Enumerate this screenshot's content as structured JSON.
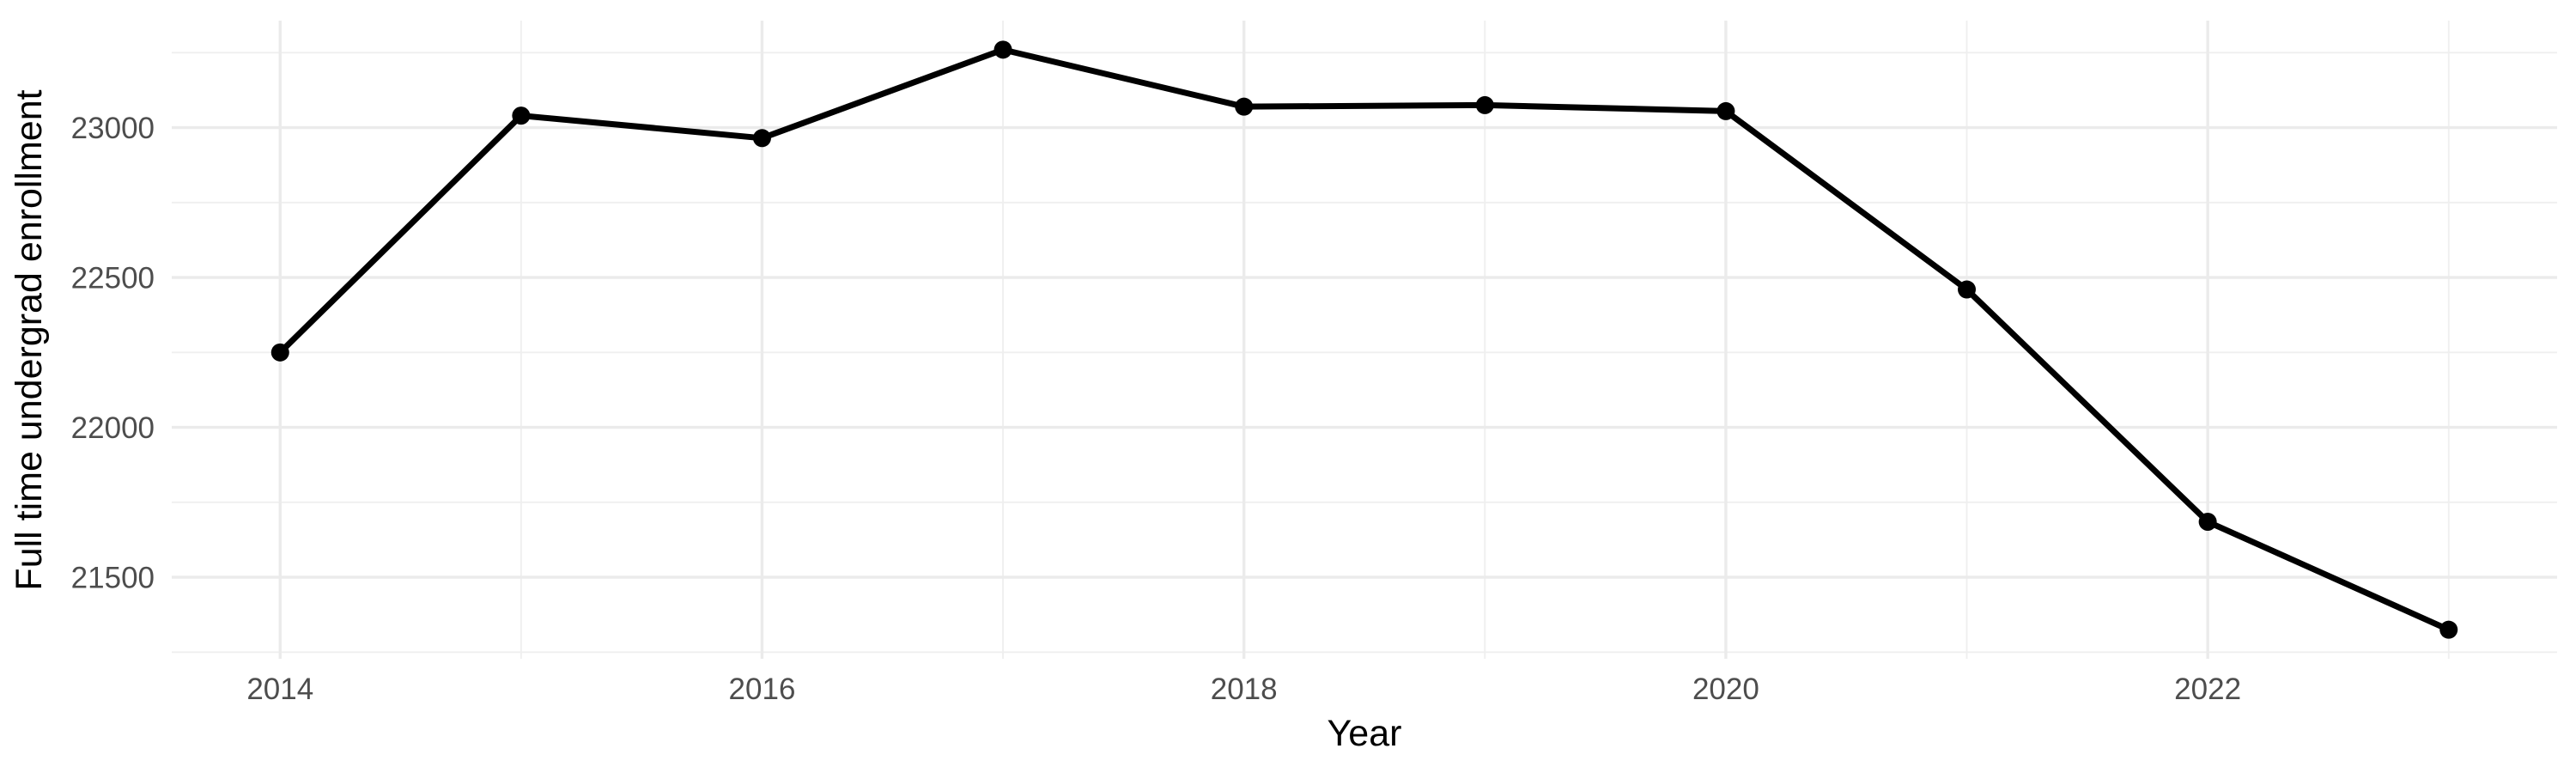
{
  "chart_data": {
    "type": "line",
    "title": "",
    "xlabel": "Year",
    "ylabel": "Full time undergrad enrollment",
    "series": [
      {
        "name": "Full time undergrad enrollment",
        "x": [
          2014,
          2015,
          2016,
          2017,
          2018,
          2019,
          2020,
          2021,
          2022,
          2023
        ],
        "values": [
          22250,
          23040,
          22965,
          23260,
          23070,
          23075,
          23055,
          22460,
          21685,
          21325
        ]
      }
    ],
    "x_major_ticks": [
      2014,
      2016,
      2018,
      2020,
      2022
    ],
    "x_tick_labels": [
      "2014",
      "2016",
      "2018",
      "2020",
      "2022"
    ],
    "x_minor_gridlines": [
      2015,
      2017,
      2019,
      2021,
      2023
    ],
    "y_major_ticks": [
      23000,
      22500,
      22000,
      21500
    ],
    "y_tick_labels": [
      "23000",
      "22500",
      "22000",
      "21500"
    ],
    "y_minor_gridlines": [
      23250,
      22750,
      22250,
      21750,
      21250
    ],
    "xlim": [
      2013.55,
      2023.45
    ],
    "ylim": [
      21228,
      23357
    ],
    "grid": true,
    "legend_position": "none",
    "colors": {
      "background": "#ffffff",
      "grid_major": "#ebebeb",
      "grid_minor": "#efefef",
      "line": "#000000",
      "point": "#000000",
      "tick_label": "#4d4d4d",
      "axis_title": "#000000"
    }
  }
}
